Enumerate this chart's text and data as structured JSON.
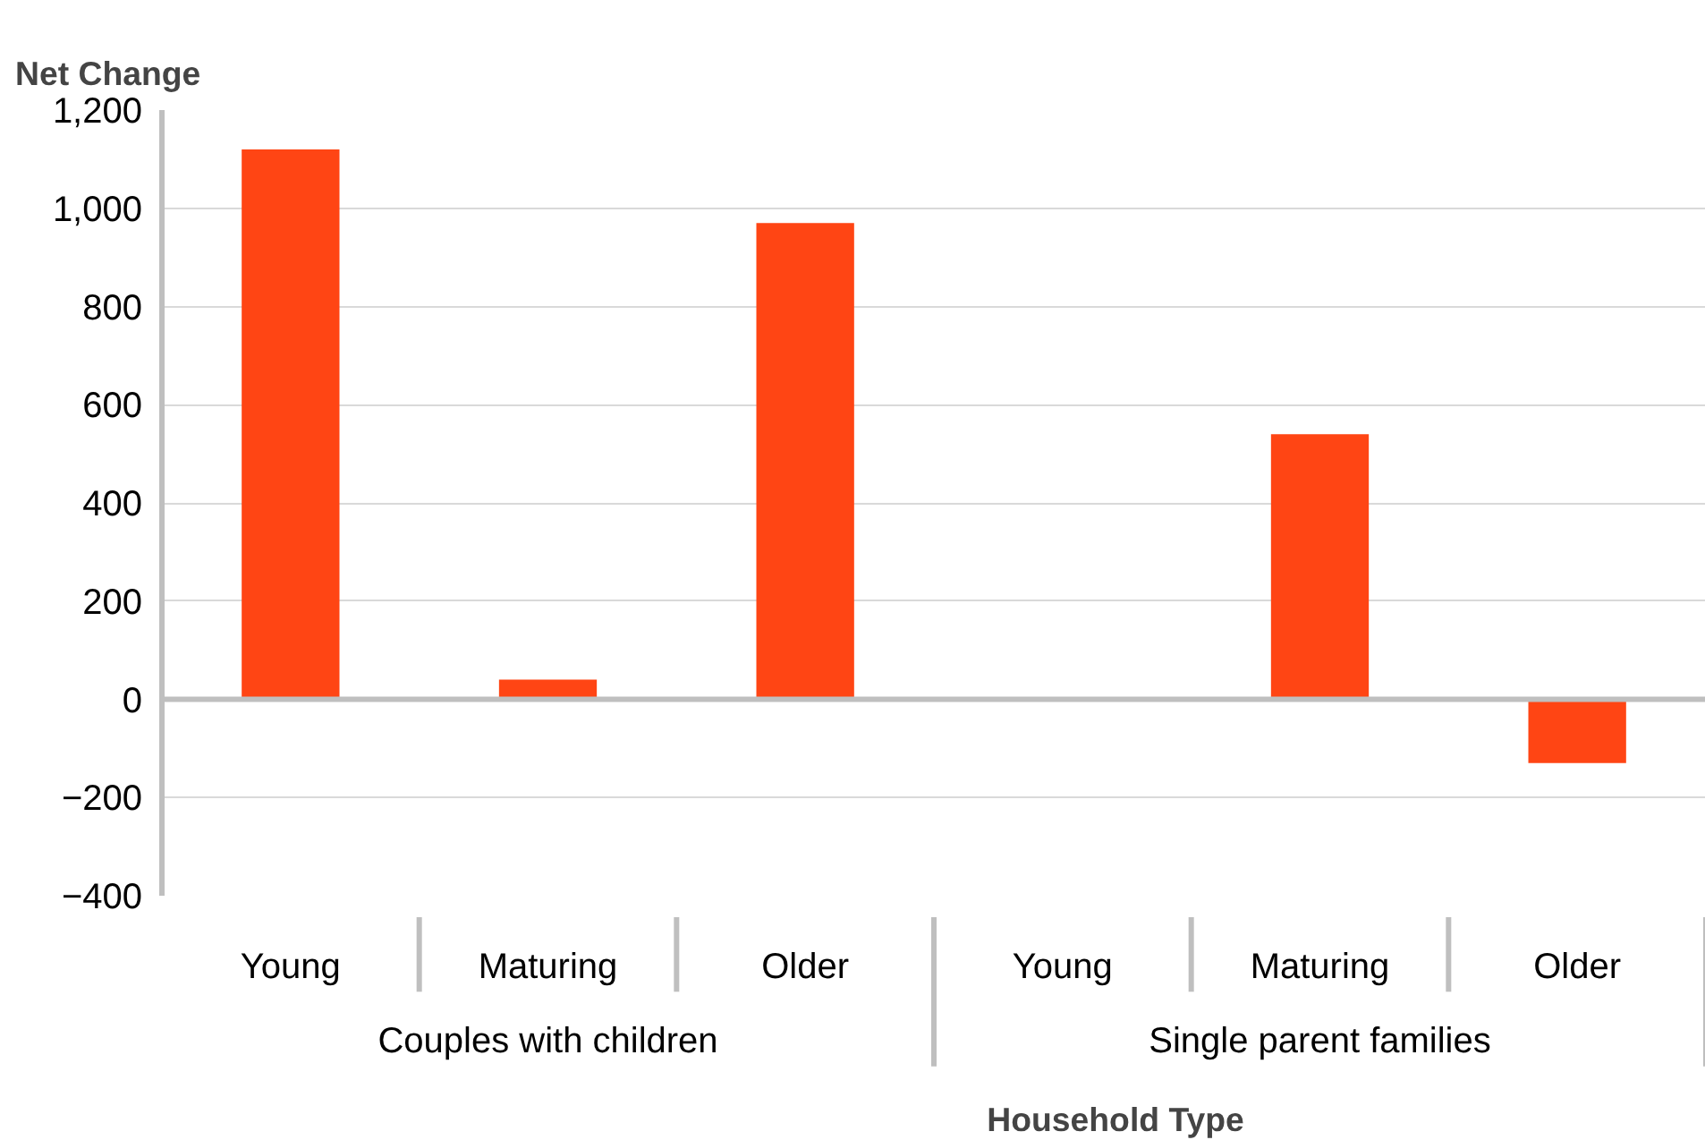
{
  "chart_data": {
    "type": "bar",
    "ylabel": "Net Change",
    "xlabel": "Household Type",
    "categories": [
      "Young",
      "Maturing",
      "Older",
      "Young",
      "Maturing",
      "Older"
    ],
    "values": [
      1120,
      40,
      970,
      0,
      540,
      -130
    ],
    "color": "#ff4514",
    "ylim": [
      -400,
      1200
    ],
    "yticks": [
      -400,
      -200,
      0,
      200,
      400,
      600,
      800,
      {
        "value": 1000,
        "label": "1,000"
      },
      {
        "value": 1200,
        "label": "1,200"
      }
    ],
    "grid": "y",
    "annotations": [
      "Couples with children",
      "Single parent families"
    ]
  }
}
